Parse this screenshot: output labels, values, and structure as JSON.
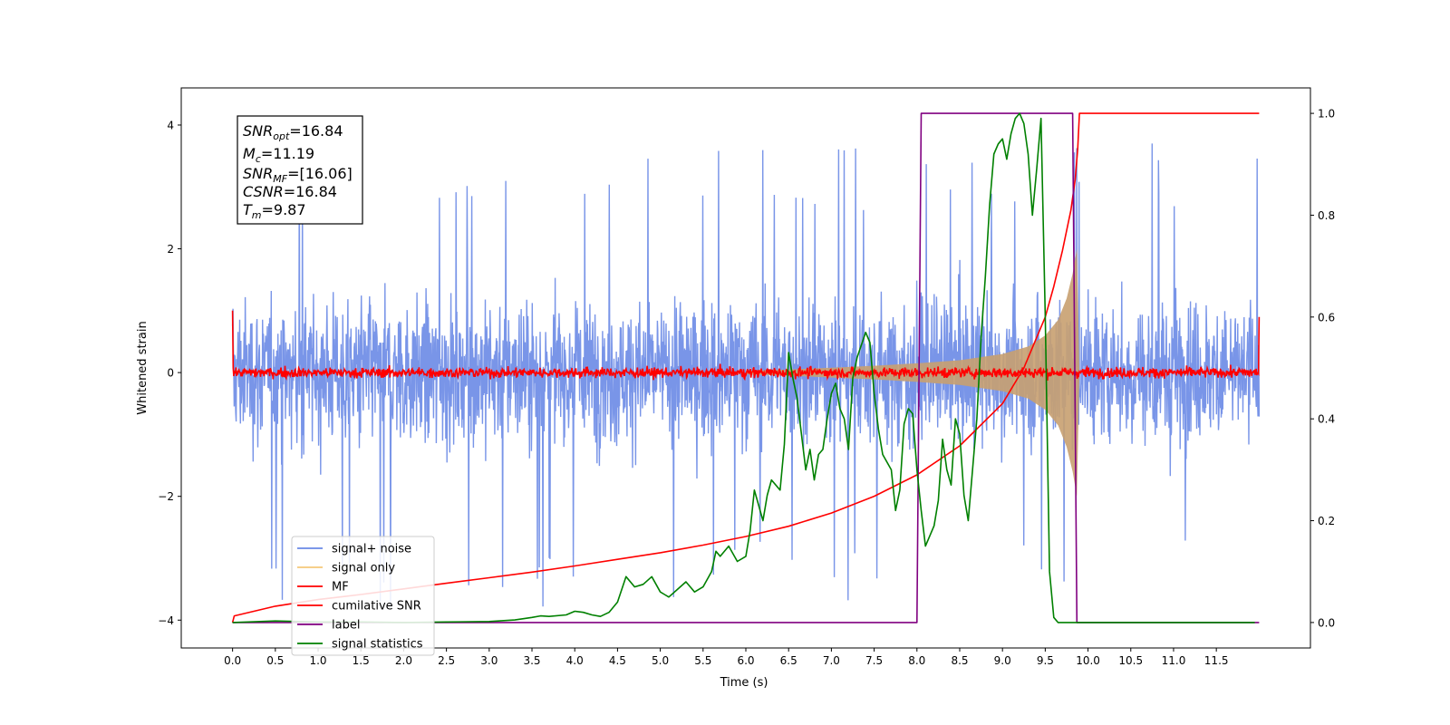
{
  "chart_data": {
    "type": "line",
    "xlabel": "Time (s)",
    "ylabel": "Whitened strain",
    "xlim": [
      -0.6,
      12.6
    ],
    "ylim_left": [
      -4.45,
      4.6
    ],
    "ylim_right": [
      -0.05,
      1.05
    ],
    "x_ticks": [
      "0.0",
      "0.5",
      "1.0",
      "1.5",
      "2.0",
      "2.5",
      "3.0",
      "3.5",
      "4.0",
      "4.5",
      "5.0",
      "5.5",
      "6.0",
      "6.5",
      "7.0",
      "7.5",
      "8.0",
      "8.5",
      "9.0",
      "9.5",
      "10.0",
      "10.5",
      "11.0",
      "11.5"
    ],
    "x_tick_values": [
      0,
      0.5,
      1,
      1.5,
      2,
      2.5,
      3,
      3.5,
      4,
      4.5,
      5,
      5.5,
      6,
      6.5,
      7,
      7.5,
      8,
      8.5,
      9,
      9.5,
      10,
      10.5,
      11,
      11.5
    ],
    "y_left_ticks": [
      "−4",
      "−2",
      "0",
      "2",
      "4"
    ],
    "y_left_tick_values": [
      -4,
      -2,
      0,
      2,
      4
    ],
    "y_right_ticks": [
      "0.0",
      "0.2",
      "0.4",
      "0.6",
      "0.8",
      "1.0"
    ],
    "y_right_tick_values": [
      0,
      0.2,
      0.4,
      0.6,
      0.8,
      1.0
    ],
    "annotation": {
      "snr_opt_label": "SNR",
      "snr_opt_sub": "opt",
      "snr_opt_value": "=16.84",
      "mc_label": "M",
      "mc_sub": "c",
      "mc_value": "=11.19",
      "snr_mf_label": "SNR",
      "snr_mf_sub": "MF",
      "snr_mf_value": "=[16.06]",
      "csnr_label": "CSNR",
      "csnr_value": "=16.84",
      "tm_label": "T",
      "tm_sub": "m",
      "tm_value": "=9.87"
    },
    "legend": {
      "placement": "lower-left",
      "entries": [
        {
          "label": "signal+ noise",
          "color": "#6a8ae6"
        },
        {
          "label": "signal only",
          "color": "#f5c87a"
        },
        {
          "label": "MF",
          "color": "#ff0000"
        },
        {
          "label": "cumilative SNR",
          "color": "#ff0000"
        },
        {
          "label": "label",
          "color": "#800080"
        },
        {
          "label": "signal statistics",
          "color": "#008000"
        }
      ]
    },
    "series": [
      {
        "name": "signal+ noise",
        "axis": "left",
        "color": "#6a8ae6",
        "x_range": [
          0,
          12
        ],
        "typical_amplitude": 1.6,
        "peak_max": 4.15,
        "peak_min": -4.05
      },
      {
        "name": "signal only",
        "axis": "left",
        "color": "#c8a070",
        "envelope_x": [
          6.0,
          6.5,
          7.0,
          7.5,
          8.0,
          8.5,
          9.0,
          9.3,
          9.5,
          9.65,
          9.75,
          9.82,
          9.87,
          9.9
        ],
        "envelope_amp": [
          0.03,
          0.05,
          0.08,
          0.11,
          0.15,
          0.2,
          0.3,
          0.42,
          0.6,
          0.85,
          1.2,
          1.6,
          2.0,
          0.0
        ]
      },
      {
        "name": "MF",
        "axis": "left",
        "color": "#ff0000",
        "x_range": [
          0,
          12
        ],
        "start_value": 1.0,
        "end_value": 0.9,
        "noise_amplitude": 0.1
      },
      {
        "name": "cumilative SNR",
        "axis": "right",
        "color": "#ff0000",
        "x": [
          0.0,
          0.02,
          0.5,
          1.0,
          1.5,
          2.0,
          2.5,
          3.0,
          3.5,
          4.0,
          4.5,
          5.0,
          5.5,
          6.0,
          6.5,
          7.0,
          7.5,
          8.0,
          8.5,
          9.0,
          9.25,
          9.5,
          9.6,
          9.7,
          9.8,
          9.85,
          9.88,
          9.9,
          12.0
        ],
        "values": [
          0.0,
          0.013,
          0.032,
          0.045,
          0.055,
          0.066,
          0.077,
          0.088,
          0.099,
          0.111,
          0.124,
          0.137,
          0.152,
          0.169,
          0.189,
          0.215,
          0.248,
          0.29,
          0.347,
          0.43,
          0.5,
          0.6,
          0.66,
          0.73,
          0.81,
          0.87,
          0.93,
          1.0,
          1.0
        ]
      },
      {
        "name": "label",
        "axis": "right",
        "color": "#800080",
        "x": [
          0,
          8.0,
          8.05,
          9.82,
          9.87,
          12.0
        ],
        "values": [
          0,
          0,
          1,
          1,
          0,
          0
        ]
      },
      {
        "name": "signal statistics",
        "axis": "right",
        "color": "#008000",
        "x": [
          0.0,
          0.5,
          1.0,
          1.5,
          2.0,
          2.5,
          3.0,
          3.3,
          3.5,
          3.6,
          3.7,
          3.9,
          4.0,
          4.1,
          4.2,
          4.3,
          4.4,
          4.5,
          4.6,
          4.7,
          4.8,
          4.9,
          5.0,
          5.05,
          5.1,
          5.2,
          5.3,
          5.4,
          5.5,
          5.6,
          5.65,
          5.7,
          5.8,
          5.9,
          6.0,
          6.05,
          6.1,
          6.2,
          6.25,
          6.3,
          6.4,
          6.45,
          6.5,
          6.55,
          6.6,
          6.7,
          6.75,
          6.8,
          6.85,
          6.9,
          6.95,
          7.0,
          7.05,
          7.1,
          7.15,
          7.2,
          7.25,
          7.3,
          7.4,
          7.45,
          7.5,
          7.55,
          7.6,
          7.7,
          7.75,
          7.8,
          7.85,
          7.9,
          7.95,
          8.0,
          8.05,
          8.1,
          8.2,
          8.25,
          8.3,
          8.35,
          8.4,
          8.45,
          8.5,
          8.55,
          8.6,
          8.7,
          8.75,
          8.8,
          8.85,
          8.9,
          8.95,
          9.0,
          9.05,
          9.1,
          9.15,
          9.2,
          9.25,
          9.3,
          9.35,
          9.4,
          9.45,
          9.5,
          9.55,
          9.6,
          9.65,
          9.7,
          9.75,
          9.8,
          9.85,
          9.9,
          9.95,
          10.0,
          10.5,
          11.0,
          11.5,
          11.95
        ],
        "values": [
          0.0,
          0.003,
          0.001,
          0.001,
          0.0,
          0.001,
          0.002,
          0.005,
          0.01,
          0.013,
          0.012,
          0.015,
          0.022,
          0.02,
          0.015,
          0.012,
          0.02,
          0.04,
          0.09,
          0.07,
          0.075,
          0.09,
          0.06,
          0.055,
          0.05,
          0.065,
          0.08,
          0.06,
          0.07,
          0.1,
          0.14,
          0.13,
          0.15,
          0.12,
          0.13,
          0.18,
          0.26,
          0.2,
          0.25,
          0.28,
          0.26,
          0.35,
          0.53,
          0.48,
          0.44,
          0.3,
          0.34,
          0.28,
          0.33,
          0.34,
          0.4,
          0.45,
          0.47,
          0.42,
          0.4,
          0.34,
          0.48,
          0.52,
          0.57,
          0.55,
          0.45,
          0.38,
          0.33,
          0.3,
          0.22,
          0.26,
          0.39,
          0.42,
          0.41,
          0.3,
          0.22,
          0.15,
          0.19,
          0.24,
          0.36,
          0.3,
          0.27,
          0.4,
          0.37,
          0.25,
          0.2,
          0.4,
          0.56,
          0.68,
          0.82,
          0.92,
          0.94,
          0.95,
          0.91,
          0.96,
          0.99,
          1.0,
          0.98,
          0.92,
          0.8,
          0.89,
          0.99,
          0.6,
          0.1,
          0.01,
          0.0,
          0.0,
          0.0,
          0.0,
          0.0,
          0.0,
          0.0,
          0.0,
          0.0,
          0.0,
          0.0,
          0.0
        ]
      }
    ]
  }
}
